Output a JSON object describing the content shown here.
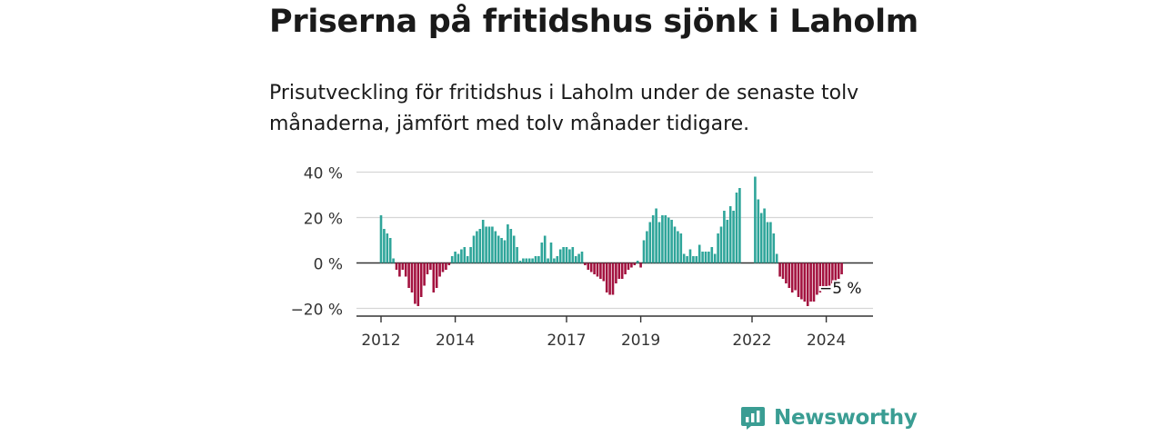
{
  "header": {
    "title": "Priserna på fritidshus sjönk i Laholm",
    "subtitle": "Prisutveckling för fritidshus i Laholm under de senaste tolv månaderna, jämfört med tolv månader tidigare."
  },
  "brand": {
    "name": "Newsworthy",
    "color": "#3a9d93",
    "icon": "newsworthy-logo-icon"
  },
  "chart_data": {
    "type": "bar",
    "y_tick_labels": [
      "40 %",
      "20 %",
      "0 %",
      "−20 %"
    ],
    "y_ticks": [
      40,
      20,
      0,
      -20
    ],
    "ylim": [
      -24,
      42
    ],
    "x_tick_labels": [
      "2012",
      "2014",
      "2017",
      "2019",
      "2022",
      "2024"
    ],
    "x_ticks": [
      2012,
      2014,
      2017,
      2019,
      2022,
      2024
    ],
    "x_start": 2012,
    "x_step_months": 1,
    "colors": {
      "positive": "#2fa59a",
      "negative": "#a3123f"
    },
    "grid": true,
    "annotation": {
      "label": "−5 %",
      "value": -5
    },
    "values": [
      21,
      15,
      13,
      11,
      2,
      -3,
      -6,
      -3,
      -6,
      -11,
      -13,
      -18,
      -19,
      -15,
      -10,
      -5,
      -3,
      -13,
      -11,
      -6,
      -4,
      -3,
      -1,
      3,
      5,
      4,
      6,
      7,
      3,
      7,
      12,
      14,
      15,
      19,
      16,
      16,
      16,
      14,
      12,
      11,
      10,
      17,
      15,
      12,
      7,
      1,
      2,
      2,
      2,
      2,
      3,
      3,
      9,
      12,
      2,
      9,
      2,
      3,
      6,
      7,
      7,
      6,
      7,
      3,
      4,
      5,
      -1,
      -3,
      -4,
      -5,
      -6,
      -7,
      -8,
      -13,
      -14,
      -14,
      -9,
      -7,
      -7,
      -5,
      -3,
      -2,
      -1,
      1,
      -2,
      10,
      14,
      18,
      21,
      24,
      18,
      21,
      21,
      20,
      19,
      16,
      14,
      13,
      4,
      3,
      6,
      3,
      3,
      8,
      5,
      5,
      5,
      7,
      4,
      13,
      16,
      23,
      19,
      25,
      23,
      31,
      33,
      null,
      null,
      null,
      null,
      38,
      28,
      22,
      24,
      18,
      18,
      13,
      4,
      -6,
      -7,
      -9,
      -11,
      -13,
      -12,
      -15,
      -16,
      -17,
      -19,
      -17,
      -17,
      -14,
      -13,
      -12,
      -11,
      -10,
      -9,
      -8,
      -7,
      -5
    ]
  }
}
